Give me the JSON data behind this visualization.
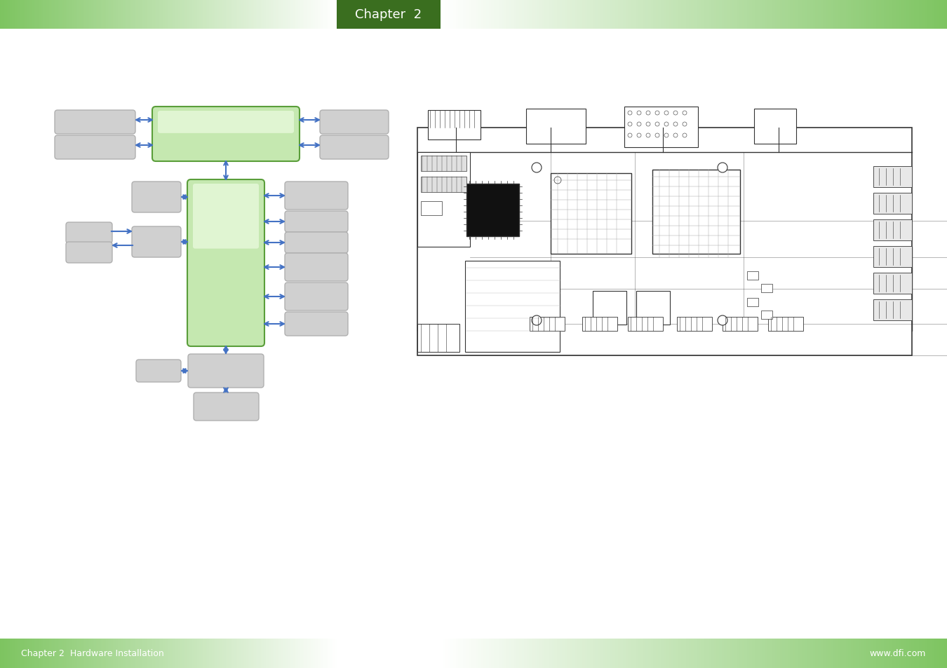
{
  "title": "Chapter  2",
  "footer_left": "Chapter 2  Hardware Installation",
  "footer_right": "www.dfi.com",
  "bg_color": "#ffffff",
  "header_bar_color1": "#7dc460",
  "header_title_bg": "#3a6e1f",
  "arrow_color": "#4472c4",
  "green_box_fill": "#c5e8b0",
  "green_box_edge": "#5a9e3a",
  "gray_box_fill": "#d0d0d0",
  "gray_box_edge": "#b0b0b0"
}
